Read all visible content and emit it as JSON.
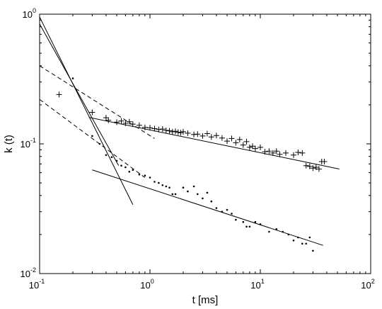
{
  "chart_data": {
    "type": "scatter",
    "title": "",
    "xlabel": "t [ms]",
    "ylabel": "k (t)",
    "xscale": "log",
    "yscale": "log",
    "xlim": [
      0.1,
      100
    ],
    "ylim": [
      0.01,
      1
    ],
    "grid": false,
    "xticks": [
      {
        "value": 0.1,
        "base": "10",
        "exp": "-1"
      },
      {
        "value": 1,
        "base": "10",
        "exp": "0"
      },
      {
        "value": 10,
        "base": "10",
        "exp": "1"
      },
      {
        "value": 100,
        "base": "10",
        "exp": "2"
      }
    ],
    "yticks": [
      {
        "value": 0.01,
        "base": "10",
        "exp": "-2"
      },
      {
        "value": 0.1,
        "base": "10",
        "exp": "-1"
      },
      {
        "value": 1,
        "base": "10",
        "exp": "0"
      }
    ],
    "series": [
      {
        "marker": "plus",
        "color": "#000000",
        "points": [
          [
            0.15,
            0.24
          ],
          [
            0.3,
            0.175
          ],
          [
            0.4,
            0.159
          ],
          [
            0.42,
            0.152
          ],
          [
            0.5,
            0.147
          ],
          [
            0.55,
            0.15
          ],
          [
            0.6,
            0.144
          ],
          [
            0.65,
            0.148
          ],
          [
            0.7,
            0.142
          ],
          [
            0.8,
            0.139
          ],
          [
            0.9,
            0.134
          ],
          [
            1.0,
            0.133
          ],
          [
            1.1,
            0.131
          ],
          [
            1.2,
            0.129
          ],
          [
            1.3,
            0.13
          ],
          [
            1.4,
            0.127
          ],
          [
            1.5,
            0.126
          ],
          [
            1.6,
            0.124
          ],
          [
            1.7,
            0.125
          ],
          [
            1.8,
            0.123
          ],
          [
            1.9,
            0.122
          ],
          [
            2.0,
            0.124
          ],
          [
            2.2,
            0.121
          ],
          [
            2.5,
            0.118
          ],
          [
            2.7,
            0.119
          ],
          [
            3.0,
            0.115
          ],
          [
            3.3,
            0.12
          ],
          [
            3.6,
            0.113
          ],
          [
            4.0,
            0.116
          ],
          [
            4.5,
            0.111
          ],
          [
            5.0,
            0.105
          ],
          [
            5.5,
            0.11
          ],
          [
            6.0,
            0.102
          ],
          [
            6.5,
            0.108
          ],
          [
            7.0,
            0.098
          ],
          [
            7.5,
            0.104
          ],
          [
            8.0,
            0.094
          ],
          [
            8.5,
            0.096
          ],
          [
            9.0,
            0.092
          ],
          [
            10.0,
            0.094
          ],
          [
            11.0,
            0.087
          ],
          [
            12.0,
            0.088
          ],
          [
            13.0,
            0.085
          ],
          [
            14.0,
            0.088
          ],
          [
            15.0,
            0.083
          ],
          [
            17.0,
            0.085
          ],
          [
            20.0,
            0.082
          ],
          [
            22.0,
            0.086
          ],
          [
            24.0,
            0.085
          ],
          [
            26.0,
            0.068
          ],
          [
            28.0,
            0.067
          ],
          [
            30.0,
            0.065
          ],
          [
            32.0,
            0.066
          ],
          [
            34.0,
            0.064
          ],
          [
            36.0,
            0.073
          ],
          [
            38.0,
            0.073
          ]
        ]
      },
      {
        "marker": "dot",
        "color": "#000000",
        "points": [
          [
            0.2,
            0.32
          ],
          [
            0.3,
            0.115
          ],
          [
            0.35,
            0.1
          ],
          [
            0.4,
            0.082
          ],
          [
            0.45,
            0.079
          ],
          [
            0.5,
            0.074
          ],
          [
            0.55,
            0.068
          ],
          [
            0.6,
            0.066
          ],
          [
            0.65,
            0.061
          ],
          [
            0.7,
            0.063
          ],
          [
            0.8,
            0.058
          ],
          [
            0.9,
            0.057
          ],
          [
            1.0,
            0.055
          ],
          [
            1.1,
            0.051
          ],
          [
            1.2,
            0.05
          ],
          [
            1.3,
            0.048
          ],
          [
            1.4,
            0.047
          ],
          [
            1.5,
            0.046
          ],
          [
            1.6,
            0.041
          ],
          [
            1.7,
            0.041
          ],
          [
            2.0,
            0.046
          ],
          [
            2.2,
            0.043
          ],
          [
            2.5,
            0.047
          ],
          [
            2.7,
            0.041
          ],
          [
            3.0,
            0.038
          ],
          [
            3.3,
            0.042
          ],
          [
            3.6,
            0.036
          ],
          [
            4.0,
            0.032
          ],
          [
            4.5,
            0.03
          ],
          [
            5.0,
            0.031
          ],
          [
            5.5,
            0.029
          ],
          [
            6.0,
            0.026
          ],
          [
            7.0,
            0.025
          ],
          [
            7.5,
            0.023
          ],
          [
            8.0,
            0.023
          ],
          [
            9.0,
            0.025
          ],
          [
            10.0,
            0.024
          ],
          [
            12.0,
            0.021
          ],
          [
            14.0,
            0.022
          ],
          [
            16.0,
            0.021
          ],
          [
            18.0,
            0.02
          ],
          [
            20.0,
            0.018
          ],
          [
            22.0,
            0.019
          ],
          [
            24.0,
            0.017
          ],
          [
            26.0,
            0.017
          ],
          [
            28.0,
            0.019
          ],
          [
            30.0,
            0.015
          ]
        ]
      }
    ],
    "lines": [
      {
        "style": "solid",
        "x": [
          0.28,
          52
        ],
        "y": [
          0.16,
          0.064
        ]
      },
      {
        "style": "solid",
        "x": [
          0.3,
          37
        ],
        "y": [
          0.063,
          0.0165
        ]
      },
      {
        "style": "solid",
        "x": [
          0.1,
          0.52
        ],
        "y": [
          0.84,
          0.068
        ]
      },
      {
        "style": "solid",
        "x": [
          0.1,
          0.7
        ],
        "y": [
          0.95,
          0.034
        ]
      },
      {
        "style": "dashed",
        "x": [
          0.1,
          1.1
        ],
        "y": [
          0.4,
          0.11
        ]
      },
      {
        "style": "dashed",
        "x": [
          0.1,
          0.9
        ],
        "y": [
          0.22,
          0.055
        ]
      }
    ]
  }
}
